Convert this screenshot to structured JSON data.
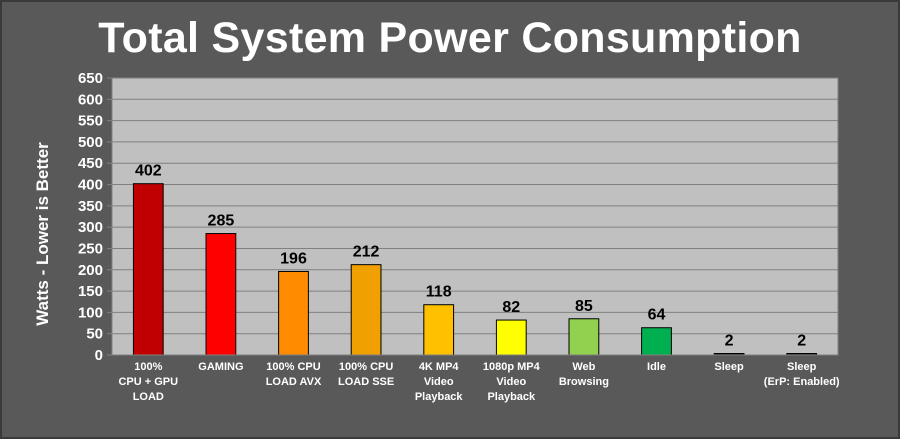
{
  "chart_data": {
    "type": "bar",
    "title": "Total System Power Consumption",
    "ylabel": "Watts - Lower is Better",
    "xlabel": "",
    "ylim": [
      0,
      650
    ],
    "yticks": [
      0,
      50,
      100,
      150,
      200,
      250,
      300,
      350,
      400,
      450,
      500,
      550,
      600,
      650
    ],
    "grid": true,
    "legend": "none",
    "categories": [
      [
        "100%",
        "CPU + GPU",
        "LOAD"
      ],
      [
        "GAMING"
      ],
      [
        "100% CPU",
        "LOAD AVX"
      ],
      [
        "100% CPU",
        "LOAD SSE"
      ],
      [
        "4K MP4",
        "Video",
        "Playback"
      ],
      [
        "1080p MP4",
        "Video",
        "Playback"
      ],
      [
        "Web",
        "Browsing"
      ],
      [
        "Idle"
      ],
      [
        "Sleep"
      ],
      [
        "Sleep",
        "(ErP: Enabled)"
      ]
    ],
    "values": [
      402,
      285,
      196,
      212,
      118,
      82,
      85,
      64,
      2,
      2
    ],
    "colors": [
      "#c00000",
      "#ff0000",
      "#ff8c00",
      "#f0a000",
      "#ffc000",
      "#ffff00",
      "#92d050",
      "#00b050",
      "#1a1a1a",
      "#1a1a1a"
    ],
    "plot_background": "#c0c0c0",
    "figure_background": "#595959"
  }
}
